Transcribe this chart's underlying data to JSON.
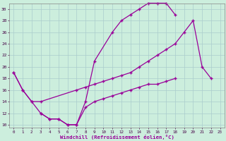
{
  "bg_color": "#cceedd",
  "grid_color": "#aacccc",
  "line_color": "#990099",
  "xlabel": "Windchill (Refroidissement éolien,°C)",
  "xlim": [
    -0.5,
    23.5
  ],
  "ylim": [
    9.5,
    31.0
  ],
  "xticks": [
    0,
    1,
    2,
    3,
    4,
    5,
    6,
    7,
    8,
    9,
    10,
    11,
    12,
    13,
    14,
    15,
    16,
    17,
    18,
    19,
    20,
    21,
    22,
    23
  ],
  "yticks": [
    10,
    12,
    14,
    16,
    18,
    20,
    22,
    24,
    26,
    28,
    30
  ],
  "line1_x": [
    0,
    1,
    2,
    3,
    4,
    5,
    6,
    7,
    8,
    9,
    11,
    12,
    13,
    14,
    15,
    16,
    17,
    18
  ],
  "line1_y": [
    19,
    16,
    14,
    12,
    11,
    11,
    10,
    10,
    14,
    21,
    26,
    28,
    29,
    30,
    31,
    31,
    31,
    29
  ],
  "line2_x": [
    0,
    1,
    2,
    3,
    7,
    8,
    9,
    10,
    11,
    12,
    13,
    14,
    15,
    16,
    17,
    18,
    19,
    20,
    21,
    22
  ],
  "line2_y": [
    19,
    16,
    14,
    14,
    16,
    16.5,
    17,
    17.5,
    18,
    18.5,
    19,
    20,
    21,
    22,
    23,
    24,
    26,
    28,
    20,
    18
  ],
  "line3_x": [
    3,
    4,
    5,
    6,
    7,
    8,
    9,
    10,
    11,
    12,
    13,
    14,
    15,
    16,
    17,
    18
  ],
  "line3_y": [
    12,
    11,
    11,
    10,
    10,
    13,
    14,
    14.5,
    15,
    15.5,
    16,
    16.5,
    17,
    17,
    17.5,
    18
  ]
}
